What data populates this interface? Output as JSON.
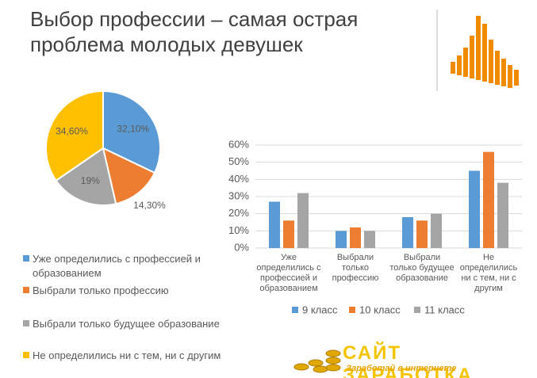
{
  "title": "Выбор профессии – самая острая проблема молодых девушек",
  "chart_data": [
    {
      "type": "pie",
      "categories": [
        "Уже определились с профессией и образованием",
        "Выбрали только профессию",
        "Выбрали только будущее образование",
        "Не определились ни с тем, ни с другим"
      ],
      "values": [
        32.1,
        14.3,
        19,
        34.6
      ],
      "value_labels": [
        "32,10%",
        "14,30%",
        "19%",
        "34,60%"
      ],
      "colors": [
        "#5b9bd5",
        "#ed7d31",
        "#a5a5a5",
        "#ffc000"
      ]
    },
    {
      "type": "bar",
      "categories": [
        "Уже определились с профессией и образованием",
        "Выбрали только профессию",
        "Выбрали только будущее образование",
        "Не определились ни с тем, ни с другим"
      ],
      "series": [
        {
          "name": "9 класс",
          "color": "#5b9bd5",
          "values": [
            27,
            10,
            18,
            45
          ]
        },
        {
          "name": "10 класс",
          "color": "#ed7d31",
          "values": [
            16,
            12,
            16,
            56
          ]
        },
        {
          "name": "11 класс",
          "color": "#a5a5a5",
          "values": [
            32,
            10,
            20,
            38
          ]
        }
      ],
      "ylim": [
        0,
        60
      ],
      "yticks": [
        {
          "value": 0,
          "label": "0%"
        },
        {
          "value": 10,
          "label": "10%"
        },
        {
          "value": 20,
          "label": "20%"
        },
        {
          "value": 30,
          "label": "30%"
        },
        {
          "value": 40,
          "label": "40%"
        },
        {
          "value": 50,
          "label": "50%"
        },
        {
          "value": 60,
          "label": "60%"
        }
      ],
      "grid": true
    }
  ],
  "logo": {
    "name": "САЙТ ЗАРАБОТКА",
    "tagline": "Заработай в интернете"
  }
}
